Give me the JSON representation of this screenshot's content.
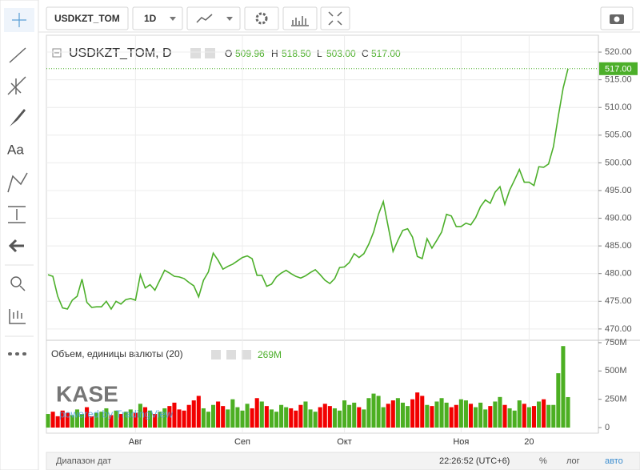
{
  "toolbar": {
    "symbol": "USDKZT_TOM",
    "interval": "1D"
  },
  "sidebar": {
    "text_tool": "Aa"
  },
  "legend": {
    "title": "USDKZT_TOM, D",
    "open_label": "O",
    "open": "509.96",
    "high_label": "H",
    "high": "518.50",
    "low_label": "L",
    "low": "503.00",
    "close_label": "C",
    "close": "517.00"
  },
  "volume_legend": {
    "title": "Объем, единицы валюты (20)",
    "value": "269M"
  },
  "watermark": {
    "logo": "KASE",
    "caption": "powered by TradingView"
  },
  "status_bar": {
    "range": "Диапазон дат",
    "time": "22:26:52 (UTC+6)",
    "percent": "%",
    "log": "лог",
    "auto": "авто"
  },
  "chart_data": [
    {
      "type": "line",
      "color": "#4caf2a",
      "grid": true,
      "categories": [
        null,
        null,
        null,
        null,
        null,
        null,
        null,
        null,
        null,
        null,
        null,
        null,
        null,
        null,
        null,
        null,
        null,
        null,
        "Авг",
        null,
        null,
        null,
        null,
        null,
        null,
        null,
        null,
        null,
        null,
        null,
        null,
        null,
        null,
        null,
        null,
        null,
        null,
        null,
        null,
        null,
        "Сеп",
        null,
        null,
        null,
        null,
        null,
        null,
        null,
        null,
        null,
        null,
        null,
        null,
        null,
        null,
        null,
        null,
        null,
        null,
        null,
        null,
        "Окт",
        null,
        null,
        null,
        null,
        null,
        null,
        null,
        null,
        null,
        null,
        null,
        null,
        null,
        null,
        null,
        null,
        null,
        null,
        null,
        null,
        null,
        null,
        null,
        "Ноя",
        null,
        null,
        null,
        null,
        null,
        null,
        null,
        null,
        null,
        null,
        null,
        null,
        null,
        "20",
        null,
        null,
        null,
        null,
        null,
        null,
        null,
        null
      ],
      "values": [
        479.8,
        479.5,
        475.9,
        473.8,
        473.6,
        475.2,
        475.9,
        479,
        474.8,
        473.9,
        474,
        474,
        475,
        473.6,
        475,
        474.5,
        475.3,
        475.5,
        475.2,
        479.8,
        477.4,
        478,
        477,
        478.8,
        480.6,
        480.1,
        479.5,
        479.4,
        479.1,
        478.4,
        477.8,
        475.8,
        478.8,
        480.3,
        483.7,
        482.4,
        480.8,
        481.3,
        481.7,
        482.3,
        482.9,
        483.2,
        482.7,
        479.7,
        479.7,
        477.7,
        478.1,
        479.4,
        480.1,
        480.6,
        480,
        479.5,
        479.2,
        479.6,
        480.2,
        480.7,
        479.8,
        478.8,
        478.2,
        479.1,
        481.1,
        481.2,
        482,
        483.6,
        482.9,
        483.6,
        485.3,
        487.5,
        490.7,
        493,
        488.5,
        484,
        486,
        487.8,
        488.1,
        486.6,
        483.1,
        482.7,
        486.3,
        484.6,
        486,
        487.5,
        490.7,
        490.4,
        488.5,
        488.5,
        489.1,
        488.8,
        490.1,
        492.1,
        493.3,
        492.7,
        494.7,
        495.7,
        492.5,
        495.1,
        496.9,
        498.8,
        496.5,
        496.5,
        495.9,
        499.3,
        499.2,
        499.8,
        502.9,
        508.4,
        513.5,
        517
      ],
      "ylim": [
        468.1,
        522.9
      ],
      "yticks": [
        {
          "value": 470,
          "label": "470.00"
        },
        {
          "value": 475,
          "label": "475.00"
        },
        {
          "value": 480,
          "label": "480.00"
        },
        {
          "value": 485,
          "label": "485.00"
        },
        {
          "value": 490,
          "label": "490.00"
        },
        {
          "value": 495,
          "label": "495.00"
        },
        {
          "value": 500,
          "label": "500.00"
        },
        {
          "value": 505,
          "label": "505.00"
        },
        {
          "value": 510,
          "label": "510.00"
        },
        {
          "value": 515,
          "label": "515.00"
        },
        {
          "value": 520,
          "label": "520.00"
        }
      ],
      "price_line": {
        "value": 517,
        "label": "517.00"
      }
    },
    {
      "type": "bar",
      "up_color": "#4caf22",
      "down_color": "#f20000",
      "values": [
        120,
        140,
        100,
        150,
        130,
        110,
        160,
        120,
        180,
        100,
        130,
        140,
        170,
        110,
        150,
        120,
        140,
        160,
        130,
        210,
        180,
        150,
        120,
        140,
        170,
        190,
        220,
        160,
        150,
        200,
        240,
        280,
        170,
        140,
        200,
        230,
        190,
        160,
        250,
        180,
        150,
        210,
        170,
        260,
        230,
        190,
        160,
        140,
        200,
        180,
        170,
        150,
        200,
        230,
        160,
        140,
        180,
        210,
        190,
        170,
        150,
        240,
        200,
        220,
        180,
        160,
        260,
        300,
        280,
        180,
        210,
        240,
        260,
        220,
        190,
        250,
        310,
        280,
        200,
        190,
        230,
        260,
        220,
        180,
        200,
        250,
        240,
        210,
        180,
        220,
        160,
        190,
        230,
        270,
        200,
        170,
        150,
        240,
        210,
        180,
        190,
        230,
        250,
        200,
        200,
        480,
        720,
        269
      ],
      "ylim": [
        0,
        771
      ],
      "yticks": [
        0,
        {
          "value": 250,
          "label": "250M"
        },
        {
          "value": 500,
          "label": "500M"
        },
        {
          "value": 750,
          "label": "750M"
        }
      ]
    }
  ]
}
